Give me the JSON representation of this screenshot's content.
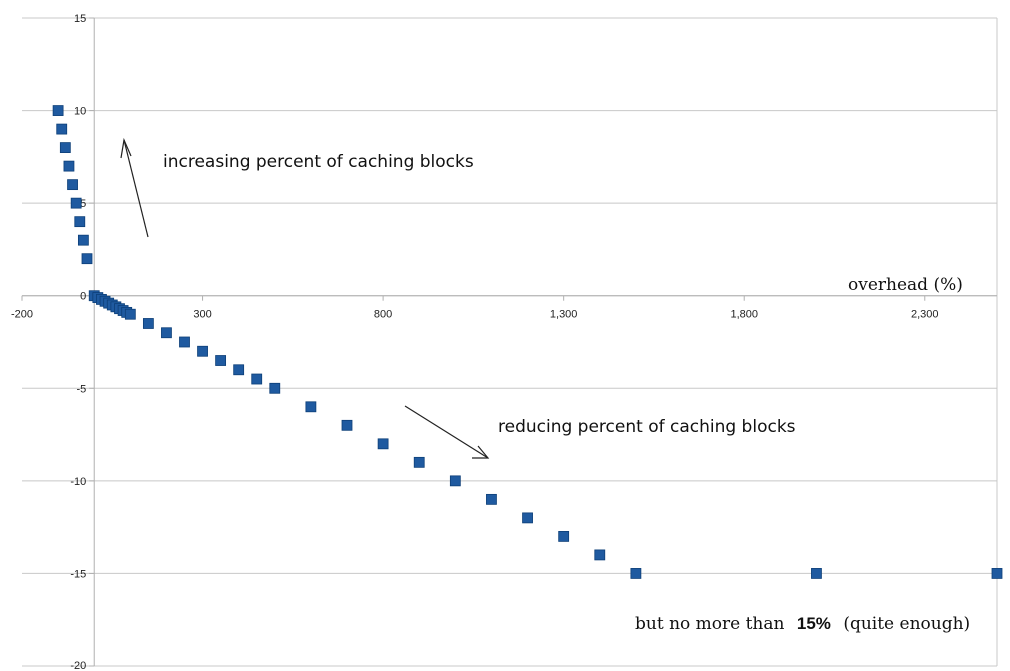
{
  "chart_data": {
    "type": "scatter",
    "xlabel": "overhead (%)",
    "ylabel": "",
    "title": "",
    "xlim": [
      -200,
      2500
    ],
    "ylim": [
      -20,
      15
    ],
    "x_ticks": [
      -200,
      300,
      800,
      1300,
      1800,
      2300
    ],
    "x_tick_labels": [
      "-200",
      "300",
      "800",
      "1,300",
      "1,800",
      "2,300"
    ],
    "y_ticks": [
      15,
      10,
      5,
      0,
      -5,
      -10,
      -15,
      -20
    ],
    "y_tick_labels": [
      "15",
      "10",
      "5",
      "0",
      "-5",
      "-10",
      "-15",
      "-20"
    ],
    "grid": "horizontal",
    "series": [
      {
        "color": "#1f5aa0",
        "marker": "square",
        "points": [
          [
            -100,
            10
          ],
          [
            -90,
            9
          ],
          [
            -80,
            8
          ],
          [
            -70,
            7
          ],
          [
            -60,
            6
          ],
          [
            -50,
            5
          ],
          [
            -40,
            4
          ],
          [
            -30,
            3
          ],
          [
            -20,
            2
          ],
          [
            0,
            0
          ],
          [
            10,
            -0.1
          ],
          [
            20,
            -0.2
          ],
          [
            30,
            -0.3
          ],
          [
            40,
            -0.4
          ],
          [
            50,
            -0.5
          ],
          [
            60,
            -0.6
          ],
          [
            70,
            -0.7
          ],
          [
            80,
            -0.8
          ],
          [
            90,
            -0.9
          ],
          [
            100,
            -1
          ],
          [
            150,
            -1.5
          ],
          [
            200,
            -2
          ],
          [
            250,
            -2.5
          ],
          [
            300,
            -3
          ],
          [
            350,
            -3.5
          ],
          [
            400,
            -4
          ],
          [
            450,
            -4.5
          ],
          [
            500,
            -5
          ],
          [
            600,
            -6
          ],
          [
            700,
            -7
          ],
          [
            800,
            -8
          ],
          [
            900,
            -9
          ],
          [
            1000,
            -10
          ],
          [
            1100,
            -11
          ],
          [
            1200,
            -12
          ],
          [
            1300,
            -13
          ],
          [
            1400,
            -14
          ],
          [
            1500,
            -15
          ],
          [
            2000,
            -15
          ],
          [
            2500,
            -15
          ]
        ]
      }
    ],
    "annotations": {
      "increasing": "increasing percent of caching blocks",
      "reducing": "reducing percent of caching blocks",
      "limit_prefix": "but no more than",
      "limit_value": "15%",
      "limit_suffix": "(quite enough)"
    }
  }
}
